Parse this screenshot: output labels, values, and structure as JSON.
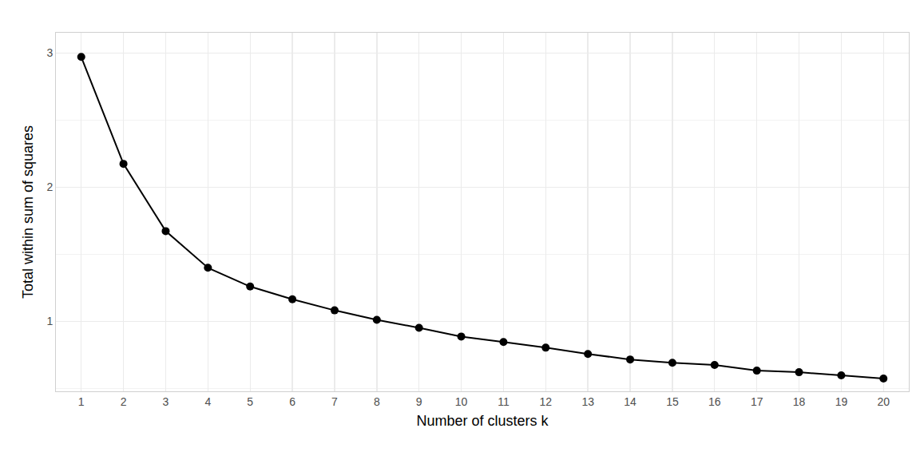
{
  "chart_data": {
    "type": "line",
    "x_label": "Number of clusters k",
    "y_label": "Total within sum of squares",
    "x": [
      1,
      2,
      3,
      4,
      5,
      6,
      7,
      8,
      9,
      10,
      11,
      12,
      13,
      14,
      15,
      16,
      17,
      18,
      19,
      20
    ],
    "values": [
      2.97,
      2.174,
      1.673,
      1.4,
      1.26,
      1.165,
      1.083,
      1.012,
      0.953,
      0.888,
      0.847,
      0.805,
      0.758,
      0.717,
      0.693,
      0.676,
      0.634,
      0.622,
      0.599,
      0.575
    ],
    "color": "#000000",
    "marker": "circle",
    "xlim": [
      0.4,
      20.6
    ],
    "ylim": [
      0.48,
      3.15
    ],
    "xticks": [
      1,
      2,
      3,
      4,
      5,
      6,
      7,
      8,
      9,
      10,
      11,
      12,
      13,
      14,
      15,
      16,
      17,
      18,
      19,
      20
    ],
    "yticks": [
      1,
      2,
      3
    ],
    "grid": true
  }
}
